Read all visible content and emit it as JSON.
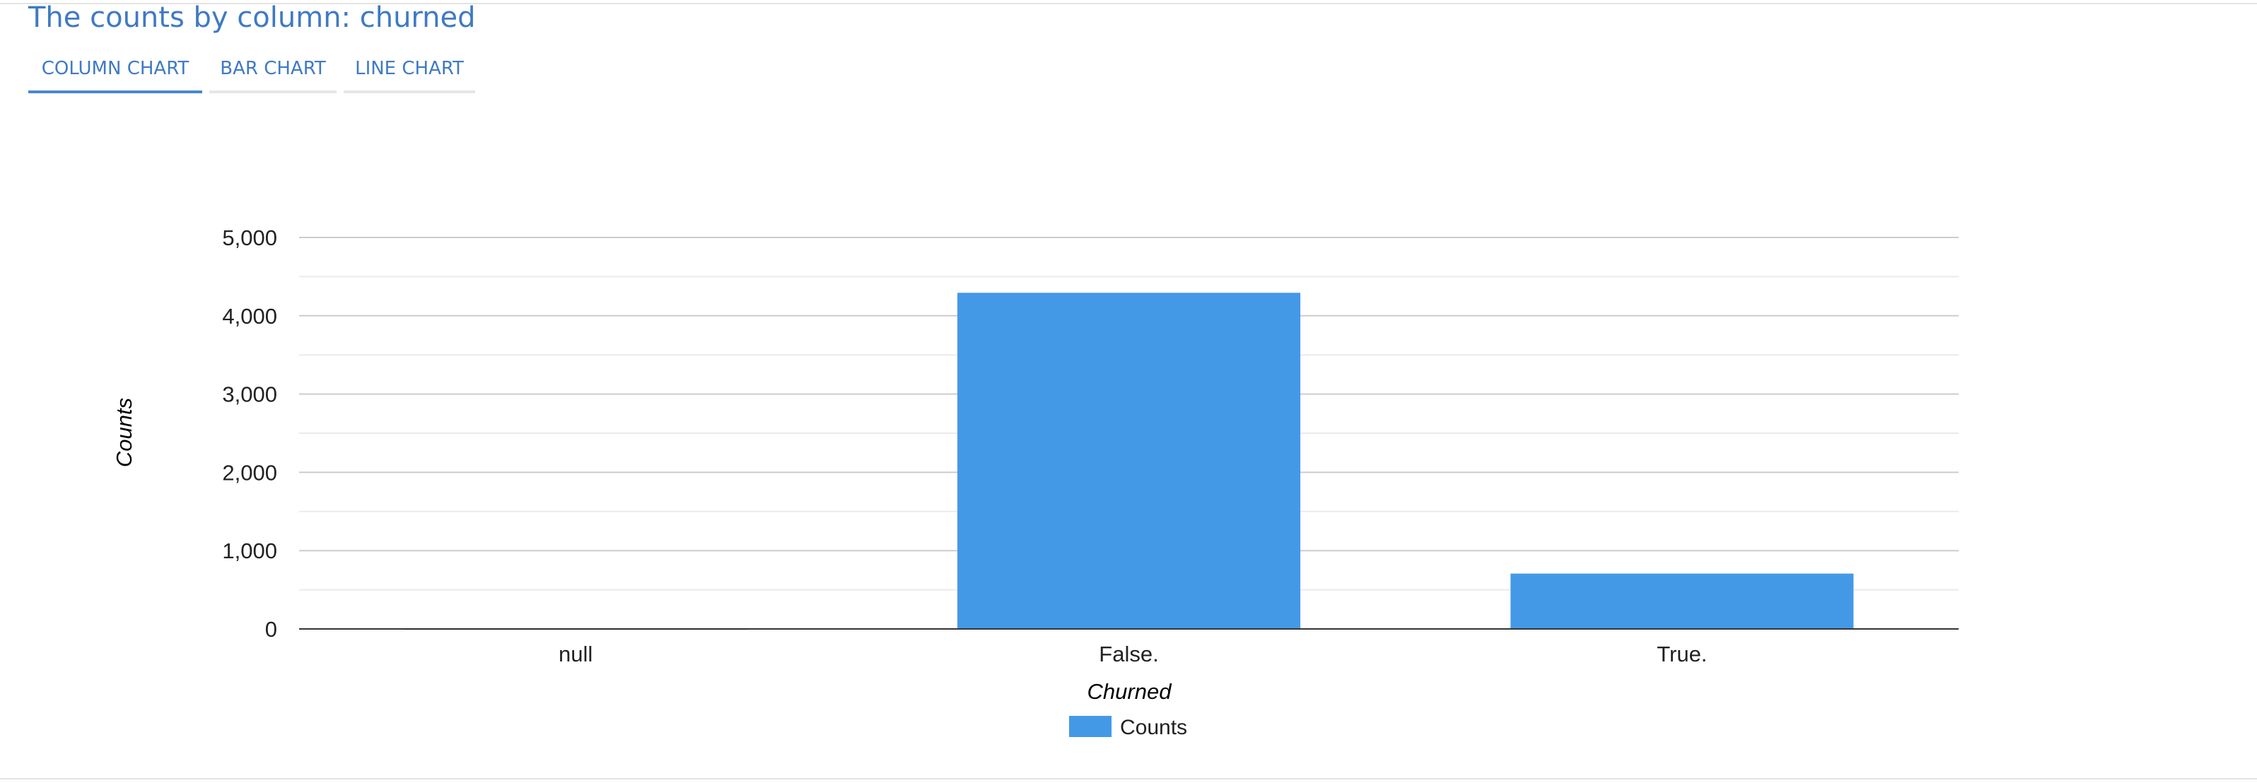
{
  "page": {
    "title": "The counts by column: churned"
  },
  "tabs": [
    {
      "label": "COLUMN CHART",
      "active": true
    },
    {
      "label": "BAR CHART",
      "active": false
    },
    {
      "label": "LINE CHART",
      "active": false
    }
  ],
  "colors": {
    "accent": "#3f7ac3",
    "bar": "#4499e6",
    "grid": "#cccccc",
    "minor_grid": "#ebebeb",
    "axis": "#333333"
  },
  "chart_data": {
    "type": "bar",
    "title": "",
    "xlabel": "Churned",
    "ylabel": "Counts",
    "categories": [
      "null",
      "False.",
      "True."
    ],
    "series": [
      {
        "name": "Counts",
        "values": [
          7,
          4293,
          707
        ]
      }
    ],
    "ylim": [
      0,
      5000
    ],
    "yticks": [
      0,
      1000,
      2000,
      3000,
      4000,
      5000
    ],
    "ytick_labels": [
      "0",
      "1,000",
      "2,000",
      "3,000",
      "4,000",
      "5,000"
    ],
    "minor_gridlines": [
      500,
      1500,
      2500,
      3500,
      4500
    ],
    "grid": true,
    "legend": "bottom"
  }
}
